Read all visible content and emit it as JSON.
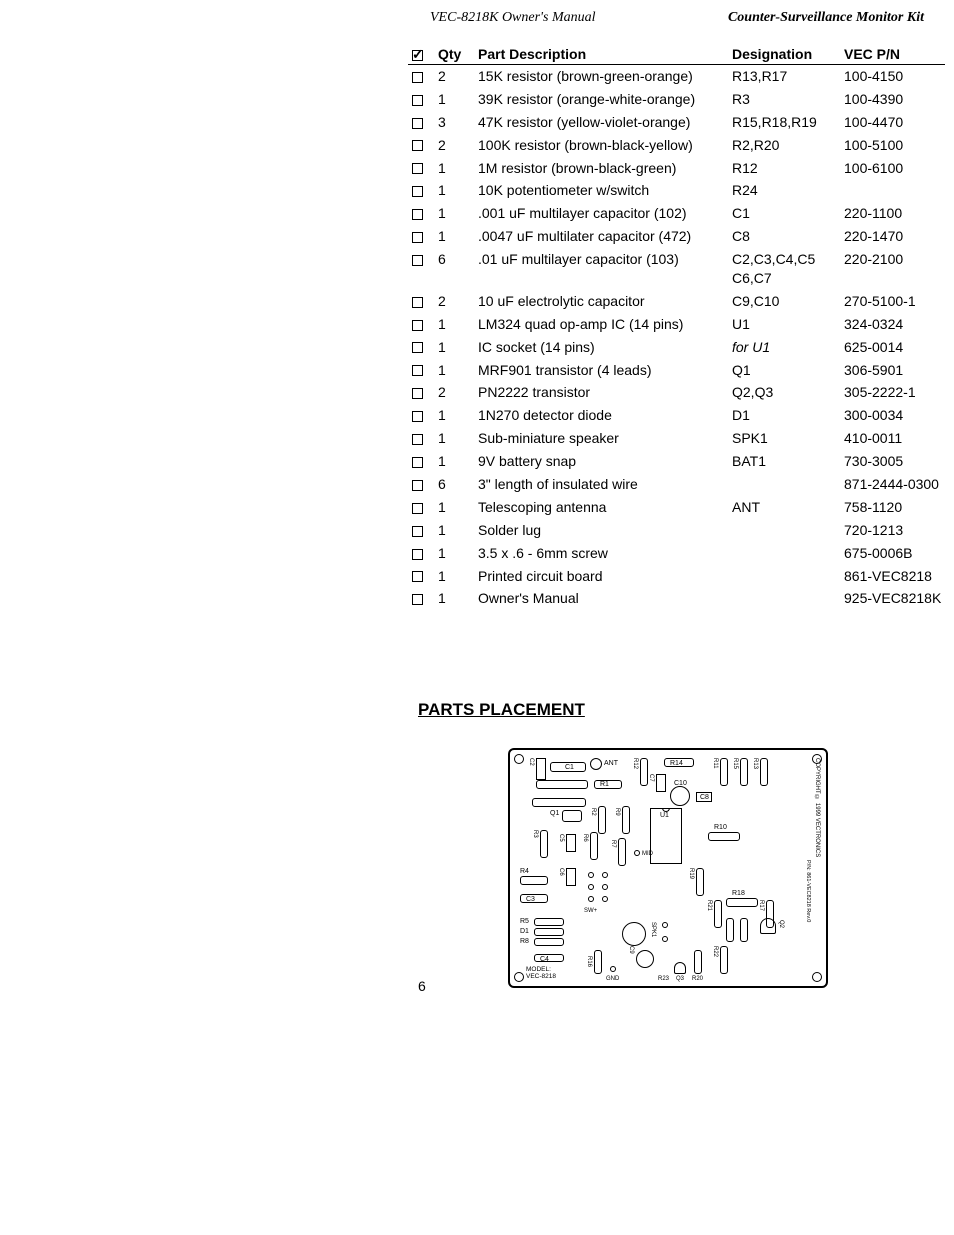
{
  "header": {
    "left": "VEC-8218K Owner's Manual",
    "right": "Counter-Surveillance Monitor Kit"
  },
  "table": {
    "headers": {
      "qty": "Qty",
      "desc": "Part Description",
      "desig": "Designation",
      "pn": "VEC P/N"
    },
    "rows": [
      {
        "qty": "2",
        "desc": "15K resistor (brown-green-orange)",
        "desig": "R13,R17",
        "pn": "100-4150"
      },
      {
        "qty": "1",
        "desc": "39K resistor (orange-white-orange)",
        "desig": "R3",
        "pn": "100-4390"
      },
      {
        "qty": "3",
        "desc": "47K resistor (yellow-violet-orange)",
        "desig": "R15,R18,R19",
        "pn": "100-4470"
      },
      {
        "qty": "2",
        "desc": "100K resistor (brown-black-yellow)",
        "desig": "R2,R20",
        "pn": "100-5100"
      },
      {
        "qty": "1",
        "desc": "1M resistor (brown-black-green)",
        "desig": "R12",
        "pn": "100-6100"
      },
      {
        "qty": "1",
        "desc": "10K potentiometer w/switch",
        "desig": "R24",
        "pn": ""
      },
      {
        "qty": "1",
        "desc": ".001 uF multilayer capacitor (102)",
        "desig": "C1",
        "pn": "220-1100"
      },
      {
        "qty": "1",
        "desc": ".0047 uF multilater capacitor (472)",
        "desig": "C8",
        "pn": "220-1470"
      },
      {
        "qty": "6",
        "desc": ".01 uF multilayer capacitor (103)",
        "desig": "C2,C3,C4,C5 C6,C7",
        "pn": "220-2100"
      },
      {
        "qty": "2",
        "desc": "10 uF electrolytic capacitor",
        "desig": "C9,C10",
        "pn": "270-5100-1"
      },
      {
        "qty": "1",
        "desc": "LM324 quad op-amp IC (14 pins)",
        "desig": "U1",
        "pn": "324-0324"
      },
      {
        "qty": "1",
        "desc": "IC socket (14 pins)",
        "desig": "for U1",
        "italicDesig": true,
        "pn": "625-0014"
      },
      {
        "qty": "1",
        "desc": "MRF901 transistor (4 leads)",
        "desig": "Q1",
        "pn": "306-5901"
      },
      {
        "qty": "2",
        "desc": "PN2222 transistor",
        "desig": "Q2,Q3",
        "pn": "305-2222-1"
      },
      {
        "qty": "1",
        "desc": "1N270 detector diode",
        "desig": "D1",
        "pn": "300-0034"
      },
      {
        "qty": "1",
        "desc": "Sub-miniature speaker",
        "desig": "SPK1",
        "pn": "410-0011"
      },
      {
        "qty": "1",
        "desc": "9V battery snap",
        "desig": "BAT1",
        "pn": "730-3005"
      },
      {
        "qty": "6",
        "desc": "3\" length of insulated wire",
        "desig": "",
        "pn": "871-2444-0300"
      },
      {
        "qty": "1",
        "desc": "Telescoping antenna",
        "desig": "ANT",
        "pn": "758-1120"
      },
      {
        "qty": "1",
        "desc": "Solder lug",
        "desig": "",
        "pn": "720-1213"
      },
      {
        "qty": "1",
        "desc": "3.5 x .6 - 6mm screw",
        "desig": "",
        "pn": "675-0006B"
      },
      {
        "qty": "1",
        "desc": "Printed circuit board",
        "desig": "",
        "pn": "861-VEC8218"
      },
      {
        "qty": "1",
        "desc": "Owner's Manual",
        "desig": "",
        "pn": "925-VEC8218K"
      }
    ]
  },
  "section_heading": "PARTS PLACEMENT",
  "page_number": "6",
  "pcb": {
    "model_line1": "MODEL:",
    "model_line2": "VEC-8218",
    "copyright": "COPYRIGHT © 1999 VECTRONICS",
    "board_ref": "P/N: 861-VEC8218 Rev.0",
    "labels": {
      "C2": "C2",
      "C1": "C1",
      "ANT": "ANT",
      "R12": "R12",
      "R14": "R14",
      "R11": "R11",
      "R15": "R15",
      "R13": "R13",
      "R1": "R1",
      "C7": "C7",
      "C10": "C10",
      "C8": "C8",
      "Q1": "Q1",
      "R2": "R2",
      "R9": "R9",
      "U1": "U1",
      "R10": "R10",
      "R3": "R3",
      "C5": "C5",
      "R6": "R6",
      "R7": "R7",
      "MID": "MID",
      "R4": "R4",
      "C6": "C6",
      "R19": "R19",
      "R18": "R18",
      "C3": "C3",
      "SW": "SW+",
      "R21": "R21",
      "R5": "R5",
      "D1": "D1",
      "R8": "R8",
      "SPK1": "SPK1",
      "Q2": "Q2",
      "C4": "C4",
      "C9": "C9",
      "R22": "R22",
      "R16": "R16",
      "GND": "GND",
      "R23": "R23",
      "Q3": "Q3",
      "R20": "R20",
      "R17": "R17"
    }
  }
}
